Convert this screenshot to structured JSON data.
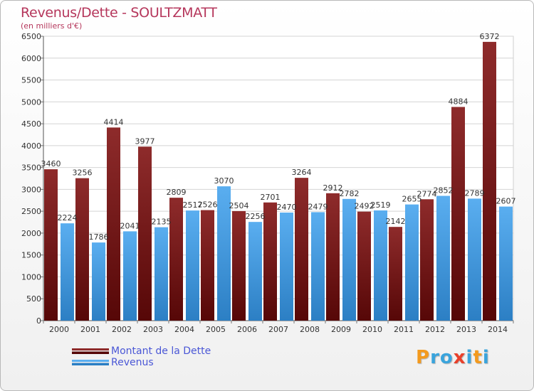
{
  "header": {
    "title": "Revenus/Dette - SOULTZMATT",
    "subtitle": "(en milliers d'€)"
  },
  "chart_data": {
    "type": "bar",
    "categories": [
      "2000",
      "2001",
      "2002",
      "2003",
      "2004",
      "2005",
      "2006",
      "2007",
      "2008",
      "2009",
      "2010",
      "2011",
      "2012",
      "2013",
      "2014"
    ],
    "series": [
      {
        "name": "Montant de la Dette",
        "color": "#7a1b1b",
        "values": [
          3460,
          3256,
          4414,
          3977,
          2809,
          2526,
          2504,
          2701,
          3264,
          2912,
          2492,
          2142,
          2774,
          4884,
          6372
        ]
      },
      {
        "name": "Revenus",
        "color": "#4a9fe3",
        "values": [
          2224,
          1786,
          2041,
          2135,
          2517,
          3070,
          2256,
          2470,
          2479,
          2782,
          2519,
          2655,
          2852,
          2789,
          2607
        ]
      }
    ],
    "yticks": [
      0,
      500,
      1000,
      1500,
      2000,
      2500,
      3000,
      3500,
      4000,
      4500,
      5000,
      5500,
      6000,
      6500
    ],
    "ylim": [
      0,
      6500
    ],
    "grid": true,
    "legend_position": "bottom-left"
  },
  "logo": {
    "letters": [
      "P",
      "r",
      "o",
      "x",
      "i",
      "t",
      "i"
    ],
    "colors": [
      "#f39a1e",
      "#3aa4dc",
      "#3aa4dc",
      "#e8402b",
      "#3aa4dc",
      "#f39a1e",
      "#3aa4dc"
    ]
  }
}
